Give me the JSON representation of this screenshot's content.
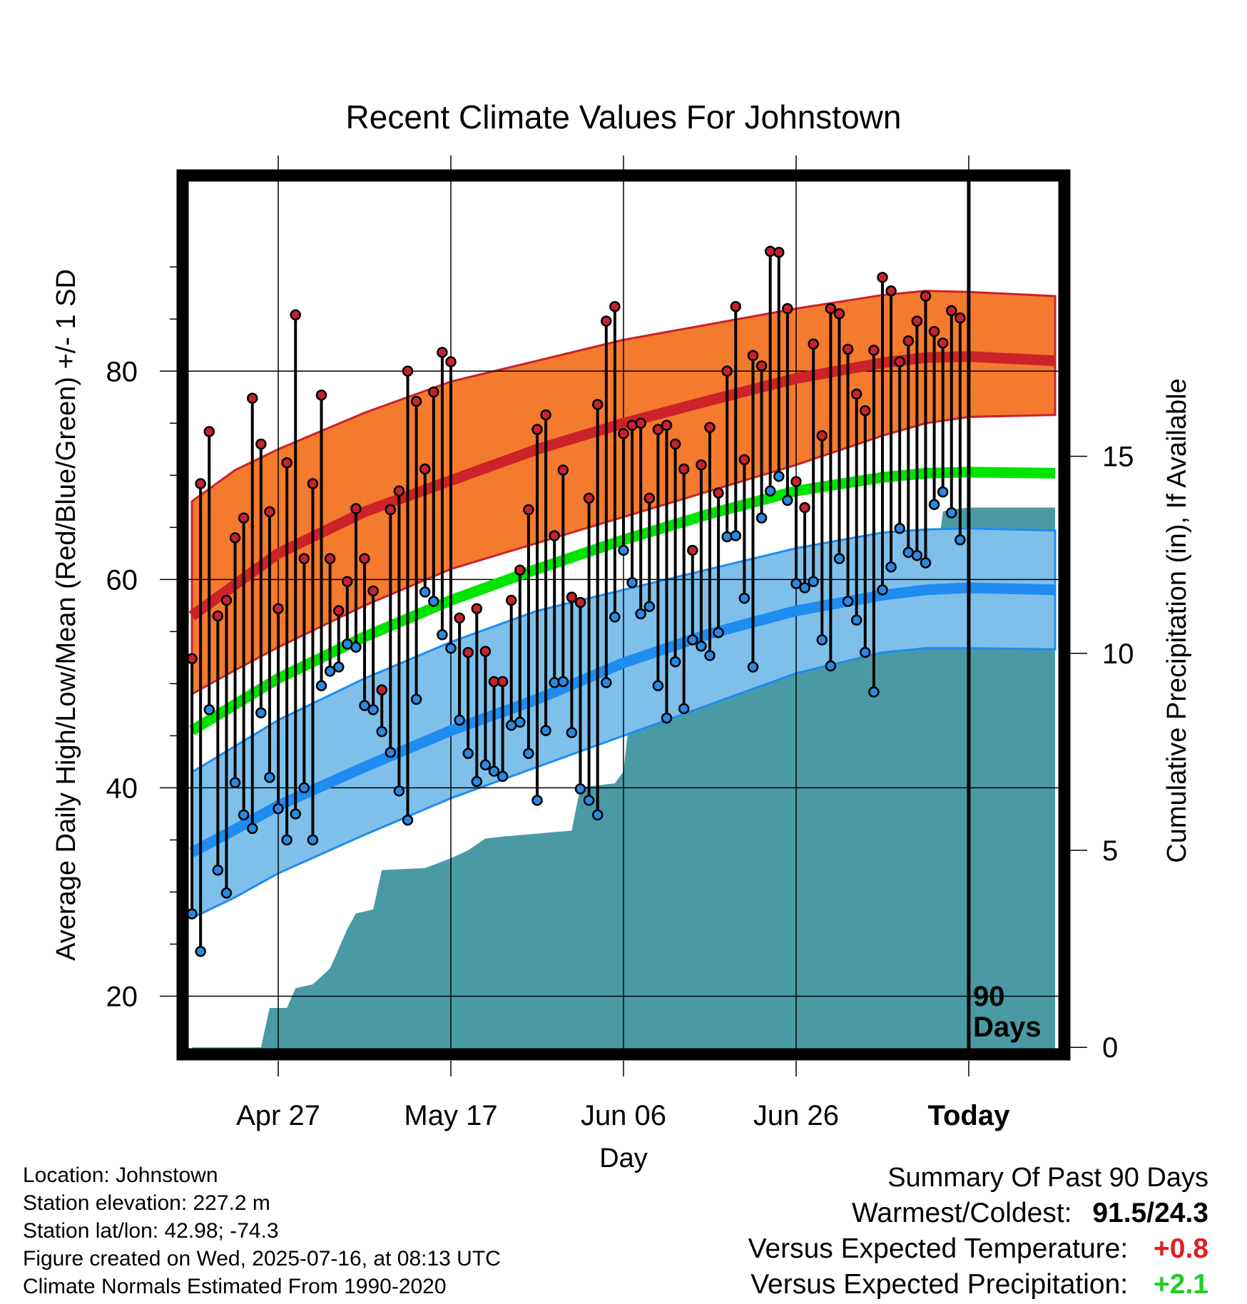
{
  "title": "Recent Climate Values For Johnstown",
  "chart_data": {
    "type": "line",
    "title": "Recent Climate Values For Johnstown",
    "xlabel": "Day",
    "ylabel": "Average Daily High/Low/Mean (Red/Blue/Green) +/- 1 SD",
    "y2label": "Cumulative Precipitation (in), If Available",
    "x_ticks": [
      "Apr 27",
      "May 17",
      "Jun 06",
      "Jun 26",
      "Today"
    ],
    "x_tick_days": [
      10,
      30,
      50,
      70,
      90
    ],
    "xlim": [
      -0.5,
      100.5
    ],
    "ylim": [
      14.9,
      98.3
    ],
    "y_ticks": [
      20,
      40,
      60,
      80
    ],
    "y2lim": [
      -0.05,
      22
    ],
    "y2_ticks": [
      0,
      5,
      10,
      15
    ],
    "grid": true,
    "today_marker": {
      "day": 90,
      "label_line1": "90",
      "label_line2": "Days"
    },
    "daily_high": [
      52.4,
      69.2,
      74.2,
      56.5,
      58,
      64,
      65.9,
      77.4,
      73,
      66.5,
      57.2,
      71.2,
      85.4,
      62,
      69.2,
      77.7,
      62,
      57,
      59.8,
      66.8,
      62,
      58.9,
      49.4,
      66.7,
      68.5,
      80,
      77.1,
      70.6,
      78,
      81.8,
      80.9,
      56.3,
      53,
      57.2,
      53.1,
      50.2,
      50.2,
      58,
      60.9,
      66.7,
      74.4,
      75.8,
      64.2,
      70.5,
      58.3,
      57.8,
      67.8,
      76.8,
      84.8,
      86.2,
      74,
      74.8,
      75,
      67.8,
      74.4,
      74.8,
      73,
      70.6,
      62.8,
      71,
      74.6,
      68.3,
      80,
      86.2,
      71.5,
      81.5,
      80.5,
      91.5,
      91.4,
      86,
      69.4,
      66.9,
      82.6,
      73.8,
      86,
      85.5,
      82.1,
      77.8,
      76.2,
      82,
      89,
      87.7,
      80.9,
      82.9,
      84.8,
      87.2,
      83.8,
      82.7,
      85.8,
      85.1
    ],
    "daily_low": [
      27.9,
      24.3,
      47.5,
      32.1,
      29.9,
      40.5,
      37.4,
      36.1,
      47.2,
      41,
      38,
      35,
      37.5,
      40,
      35,
      49.8,
      51.2,
      51.6,
      53.8,
      53.5,
      47.9,
      47.5,
      45.4,
      43.4,
      39.7,
      36.9,
      48.5,
      58.8,
      57.9,
      54.7,
      53.4,
      46.5,
      43.3,
      40.6,
      42.2,
      41.6,
      41.1,
      46,
      46.3,
      43.3,
      38.8,
      45.5,
      50.1,
      50.2,
      45.3,
      39.9,
      38.8,
      37.4,
      50.1,
      56.4,
      62.8,
      59.7,
      56.7,
      57.4,
      49.8,
      46.7,
      52.1,
      47.6,
      54.2,
      53.6,
      52.7,
      54.9,
      64.1,
      64.2,
      58.2,
      51.6,
      65.9,
      68.5,
      69.9,
      67.6,
      59.6,
      59.2,
      59.8,
      54.2,
      51.7,
      62,
      57.9,
      56.1,
      53,
      49.2,
      59,
      61.2,
      64.9,
      62.6,
      62.3,
      61.6,
      67.2,
      68.4,
      66.4,
      63.8
    ],
    "normal_high": [
      [
        0,
        56.5
      ],
      [
        5,
        59.5
      ],
      [
        10,
        62.5
      ],
      [
        20,
        66.5
      ],
      [
        30,
        69.5
      ],
      [
        40,
        72.5
      ],
      [
        50,
        75
      ],
      [
        60,
        77.2
      ],
      [
        70,
        79.3
      ],
      [
        80,
        80.8
      ],
      [
        85,
        81.3
      ],
      [
        90,
        81.4
      ],
      [
        100,
        81
      ]
    ],
    "normal_high_sd_upper": [
      [
        0,
        67.5
      ],
      [
        5,
        70.5
      ],
      [
        10,
        72.5
      ],
      [
        20,
        76
      ],
      [
        30,
        79
      ],
      [
        40,
        81
      ],
      [
        50,
        83
      ],
      [
        60,
        84.5
      ],
      [
        70,
        86
      ],
      [
        80,
        87.3
      ],
      [
        85,
        87.7
      ],
      [
        90,
        87.6
      ],
      [
        100,
        87.2
      ]
    ],
    "normal_high_sd_lower": [
      [
        0,
        49
      ],
      [
        5,
        51.3
      ],
      [
        10,
        53.5
      ],
      [
        20,
        57.5
      ],
      [
        30,
        61
      ],
      [
        40,
        63.5
      ],
      [
        50,
        66
      ],
      [
        60,
        68.5
      ],
      [
        70,
        71
      ],
      [
        80,
        73.8
      ],
      [
        85,
        75
      ],
      [
        90,
        75.6
      ],
      [
        100,
        75.8
      ]
    ],
    "normal_mean": [
      [
        0,
        45.5
      ],
      [
        5,
        48
      ],
      [
        10,
        50.5
      ],
      [
        20,
        54.5
      ],
      [
        30,
        58
      ],
      [
        40,
        61
      ],
      [
        50,
        63.8
      ],
      [
        60,
        66.3
      ],
      [
        70,
        68.5
      ],
      [
        80,
        69.8
      ],
      [
        85,
        70.2
      ],
      [
        90,
        70.3
      ],
      [
        100,
        70.2
      ]
    ],
    "normal_low": [
      [
        0,
        33.8
      ],
      [
        5,
        36
      ],
      [
        10,
        38.3
      ],
      [
        20,
        42
      ],
      [
        30,
        45.5
      ],
      [
        40,
        48.5
      ],
      [
        50,
        52
      ],
      [
        60,
        54.8
      ],
      [
        70,
        57
      ],
      [
        80,
        58.5
      ],
      [
        85,
        59
      ],
      [
        90,
        59.2
      ],
      [
        100,
        59
      ]
    ],
    "normal_low_sd_upper": [
      [
        0,
        41.5
      ],
      [
        5,
        44
      ],
      [
        10,
        46.5
      ],
      [
        20,
        50.5
      ],
      [
        30,
        54
      ],
      [
        40,
        57
      ],
      [
        50,
        59
      ],
      [
        60,
        61
      ],
      [
        70,
        63
      ],
      [
        80,
        64.5
      ],
      [
        85,
        64.8
      ],
      [
        90,
        64.9
      ],
      [
        100,
        64.7
      ]
    ],
    "normal_low_sd_lower": [
      [
        0,
        27.5
      ],
      [
        5,
        29.5
      ],
      [
        10,
        31.8
      ],
      [
        20,
        35.5
      ],
      [
        30,
        39
      ],
      [
        40,
        42
      ],
      [
        50,
        45
      ],
      [
        60,
        48
      ],
      [
        70,
        51
      ],
      [
        80,
        53
      ],
      [
        85,
        53.4
      ],
      [
        90,
        53.4
      ],
      [
        100,
        53.3
      ]
    ],
    "cumulative_precip": [
      [
        0,
        0
      ],
      [
        8,
        0
      ],
      [
        9,
        1
      ],
      [
        11,
        1
      ],
      [
        12,
        1.5
      ],
      [
        14,
        1.6
      ],
      [
        16,
        2
      ],
      [
        17,
        2.5
      ],
      [
        18,
        3
      ],
      [
        19,
        3.4
      ],
      [
        21,
        3.5
      ],
      [
        22,
        4.5
      ],
      [
        27,
        4.55
      ],
      [
        30,
        4.8
      ],
      [
        32,
        5
      ],
      [
        34,
        5.3
      ],
      [
        36,
        5.35
      ],
      [
        44,
        5.5
      ],
      [
        45,
        6.6
      ],
      [
        49,
        6.7
      ],
      [
        50,
        7
      ],
      [
        51,
        9
      ],
      [
        52,
        9.5
      ],
      [
        53,
        10.2
      ],
      [
        54,
        10.3
      ],
      [
        59,
        10.4
      ],
      [
        61,
        10.6
      ],
      [
        67,
        10.9
      ],
      [
        77,
        11
      ],
      [
        78,
        11.3
      ],
      [
        79,
        11.35
      ],
      [
        80,
        11.8
      ],
      [
        86,
        11.8
      ],
      [
        87,
        13.6
      ],
      [
        88,
        13.65
      ],
      [
        90,
        13.7
      ],
      [
        100,
        13.7
      ]
    ],
    "colors": {
      "high_band": "#f47a2e",
      "high_line": "#cc2229",
      "low_band": "#7fc0ea",
      "low_line": "#1e8cf0",
      "mean_line": "#00e400",
      "precip": "#4a9aa5",
      "high_dot": "#c8232c",
      "low_dot": "#2a8ae2"
    }
  },
  "info": {
    "location": "Location: Johnstown",
    "elevation": "Station elevation: 227.2 m",
    "latlon": "Station lat/lon: 42.98; -74.3",
    "created": "Figure created on Wed, 2025-07-16, at 08:13 UTC",
    "normals": "Climate Normals Estimated From 1990-2020"
  },
  "summary": {
    "heading": "Summary Of Past 90 Days",
    "warmest_label": "Warmest/Coldest:",
    "warmest_value": "91.5/24.3",
    "temp_label": "Versus Expected Temperature:",
    "temp_value": "+0.8",
    "temp_color": "#e02020",
    "precip_label": "Versus Expected Precipitation:",
    "precip_value": "+2.1",
    "precip_color": "#22cc22"
  }
}
